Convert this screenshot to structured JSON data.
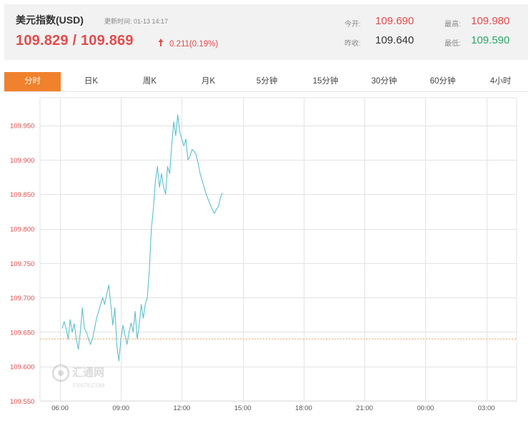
{
  "quote": {
    "title": "美元指数(USD)",
    "updated_label": "更新时间:",
    "updated_time": "01-13 14:17",
    "bid_ask": "109.829 / 109.869",
    "change": "0.211(0.19%)",
    "open_label": "今开:",
    "open_value": "109.690",
    "prev_close_label": "昨收:",
    "prev_close_value": "109.640",
    "high_label": "最高:",
    "high_value": "109.980",
    "low_label": "最低:",
    "low_value": "109.590",
    "colors": {
      "up": "#e44b4b",
      "down": "#2aa769",
      "neutral": "#333333"
    }
  },
  "tabs": [
    {
      "label": "分时",
      "active": true
    },
    {
      "label": "日K",
      "active": false
    },
    {
      "label": "周K",
      "active": false
    },
    {
      "label": "月K",
      "active": false
    },
    {
      "label": "5分钟",
      "active": false
    },
    {
      "label": "15分钟",
      "active": false
    },
    {
      "label": "30分钟",
      "active": false
    },
    {
      "label": "60分钟",
      "active": false
    },
    {
      "label": "4小时",
      "active": false
    }
  ],
  "watermark": {
    "name": "汇通网",
    "url": "FX678.COM"
  },
  "chart_data": {
    "type": "line",
    "title": "",
    "xlabel": "",
    "ylabel": "",
    "ylim": [
      109.55,
      109.99
    ],
    "y_ticks": [
      109.55,
      109.6,
      109.65,
      109.7,
      109.75,
      109.8,
      109.85,
      109.9,
      109.95
    ],
    "y_tick_labels": [
      "109.550",
      "109.600",
      "109.650",
      "109.700",
      "109.750",
      "109.800",
      "109.850",
      "109.900",
      "109.950"
    ],
    "x_range_hours": [
      6,
      27
    ],
    "x_ticks": [
      6,
      9,
      12,
      15,
      18,
      21,
      24,
      27
    ],
    "x_tick_labels": [
      "06:00",
      "09:00",
      "12:00",
      "15:00",
      "18:00",
      "21:00",
      "00:00",
      "03:00"
    ],
    "grid": true,
    "reference_line": {
      "value": 109.64,
      "color": "#f0a060",
      "style": "dashed"
    },
    "series": [
      {
        "color": "#5bc0cf",
        "x": [
          6.1,
          6.2,
          6.3,
          6.4,
          6.5,
          6.6,
          6.7,
          6.8,
          6.9,
          7.0,
          7.1,
          7.2,
          7.3,
          7.4,
          7.5,
          7.6,
          7.7,
          7.8,
          7.9,
          8.0,
          8.1,
          8.2,
          8.3,
          8.4,
          8.5,
          8.6,
          8.7,
          8.8,
          8.9,
          9.0,
          9.1,
          9.2,
          9.3,
          9.4,
          9.5,
          9.6,
          9.7,
          9.8,
          9.9,
          10.0,
          10.1,
          10.2,
          10.3,
          10.4,
          10.5,
          10.6,
          10.7,
          10.8,
          10.9,
          11.0,
          11.1,
          11.2,
          11.3,
          11.4,
          11.5,
          11.6,
          11.7,
          11.8,
          11.9,
          12.0,
          12.1,
          12.2,
          12.3,
          12.4,
          12.5,
          12.6,
          12.7,
          12.8,
          12.9,
          13.0,
          13.1,
          13.2,
          13.3,
          13.4,
          13.5,
          13.6,
          13.7,
          13.8,
          13.9,
          14.0
        ],
        "values": [
          109.655,
          109.665,
          109.655,
          109.64,
          109.668,
          109.65,
          109.662,
          109.64,
          109.625,
          109.65,
          109.685,
          109.655,
          109.65,
          109.64,
          109.632,
          109.64,
          109.655,
          109.67,
          109.68,
          109.69,
          109.7,
          109.69,
          109.705,
          109.718,
          109.69,
          109.66,
          109.685,
          109.63,
          109.608,
          109.64,
          109.66,
          109.645,
          109.632,
          109.65,
          109.663,
          109.65,
          109.68,
          109.64,
          109.66,
          109.69,
          109.67,
          109.69,
          109.7,
          109.74,
          109.8,
          109.83,
          109.87,
          109.89,
          109.86,
          109.88,
          109.86,
          109.85,
          109.89,
          109.88,
          109.92,
          109.955,
          109.935,
          109.965,
          109.94,
          109.93,
          109.92,
          109.93,
          109.9,
          109.905,
          109.915,
          109.912,
          109.908,
          109.895,
          109.88,
          109.87,
          109.86,
          109.85,
          109.842,
          109.835,
          109.828,
          109.822,
          109.828,
          109.832,
          109.845,
          109.852
        ]
      }
    ]
  }
}
